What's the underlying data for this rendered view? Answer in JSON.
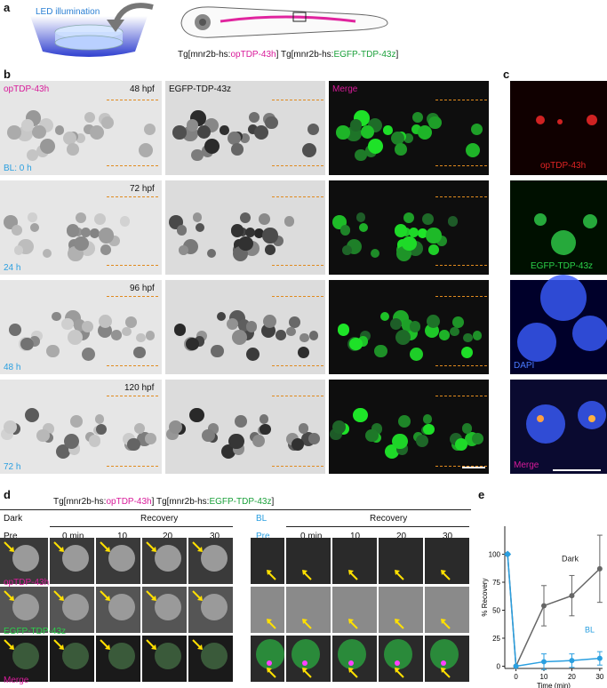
{
  "panel_a": {
    "label": "a",
    "led_text": "LED illumination",
    "line_prefix1": "Tg[mnr2b-hs:",
    "line_op": "opTDP-43h",
    "line_mid": "] Tg[mnr2b-hs:",
    "line_egfp": "EGFP-TDP-43z",
    "line_end": "]"
  },
  "panel_b": {
    "label": "b",
    "col_headers": [
      "opTDP-43h",
      "EGFP-TDP-43z",
      "Merge"
    ],
    "rows": [
      {
        "hpf": "48 hpf",
        "bl": "BL: 0 h"
      },
      {
        "hpf": "72 hpf",
        "bl": "24 h"
      },
      {
        "hpf": "96 hpf",
        "bl": "48 h"
      },
      {
        "hpf": "120 hpf",
        "bl": "72 h"
      }
    ]
  },
  "panel_c": {
    "label": "c",
    "channels": [
      "opTDP-43h",
      "EGFP-TDP-43z",
      "DAPI",
      "Merge"
    ]
  },
  "panel_d": {
    "label": "d",
    "line_prefix": "Tg[mnr2b-hs:",
    "line_op": "opTDP-43h",
    "line_mid": "] Tg[mnr2b-hs:",
    "line_egfp": "EGFP-TDP-43z",
    "line_end": "]",
    "dark_label": "Dark",
    "bl_label": "BL",
    "recovery": "Recovery",
    "timepoints": [
      "Pre",
      "0 min",
      "10",
      "20",
      "30"
    ],
    "row_labels": [
      "opTDP-43h",
      "EGFP-TDP-43z",
      "Merge"
    ]
  },
  "panel_e": {
    "label": "e"
  },
  "chart_data": {
    "type": "line",
    "xlabel": "Time (min)",
    "ylabel": "% Recovery",
    "x": [
      -3,
      0,
      10,
      20,
      30
    ],
    "xticks": [
      0,
      10,
      20,
      30
    ],
    "yticks": [
      0,
      25,
      50,
      75,
      100
    ],
    "xlim": [
      -4,
      31
    ],
    "ylim": [
      -2,
      125
    ],
    "series": [
      {
        "name": "Dark",
        "color": "#666666",
        "values": [
          100,
          0,
          54,
          63,
          87
        ],
        "err": [
          0,
          0,
          18,
          18,
          30
        ]
      },
      {
        "name": "BL",
        "color": "#2a9fe0",
        "values": [
          100,
          0,
          4,
          5,
          7
        ],
        "err": [
          0,
          0,
          7,
          6,
          6
        ]
      }
    ]
  }
}
